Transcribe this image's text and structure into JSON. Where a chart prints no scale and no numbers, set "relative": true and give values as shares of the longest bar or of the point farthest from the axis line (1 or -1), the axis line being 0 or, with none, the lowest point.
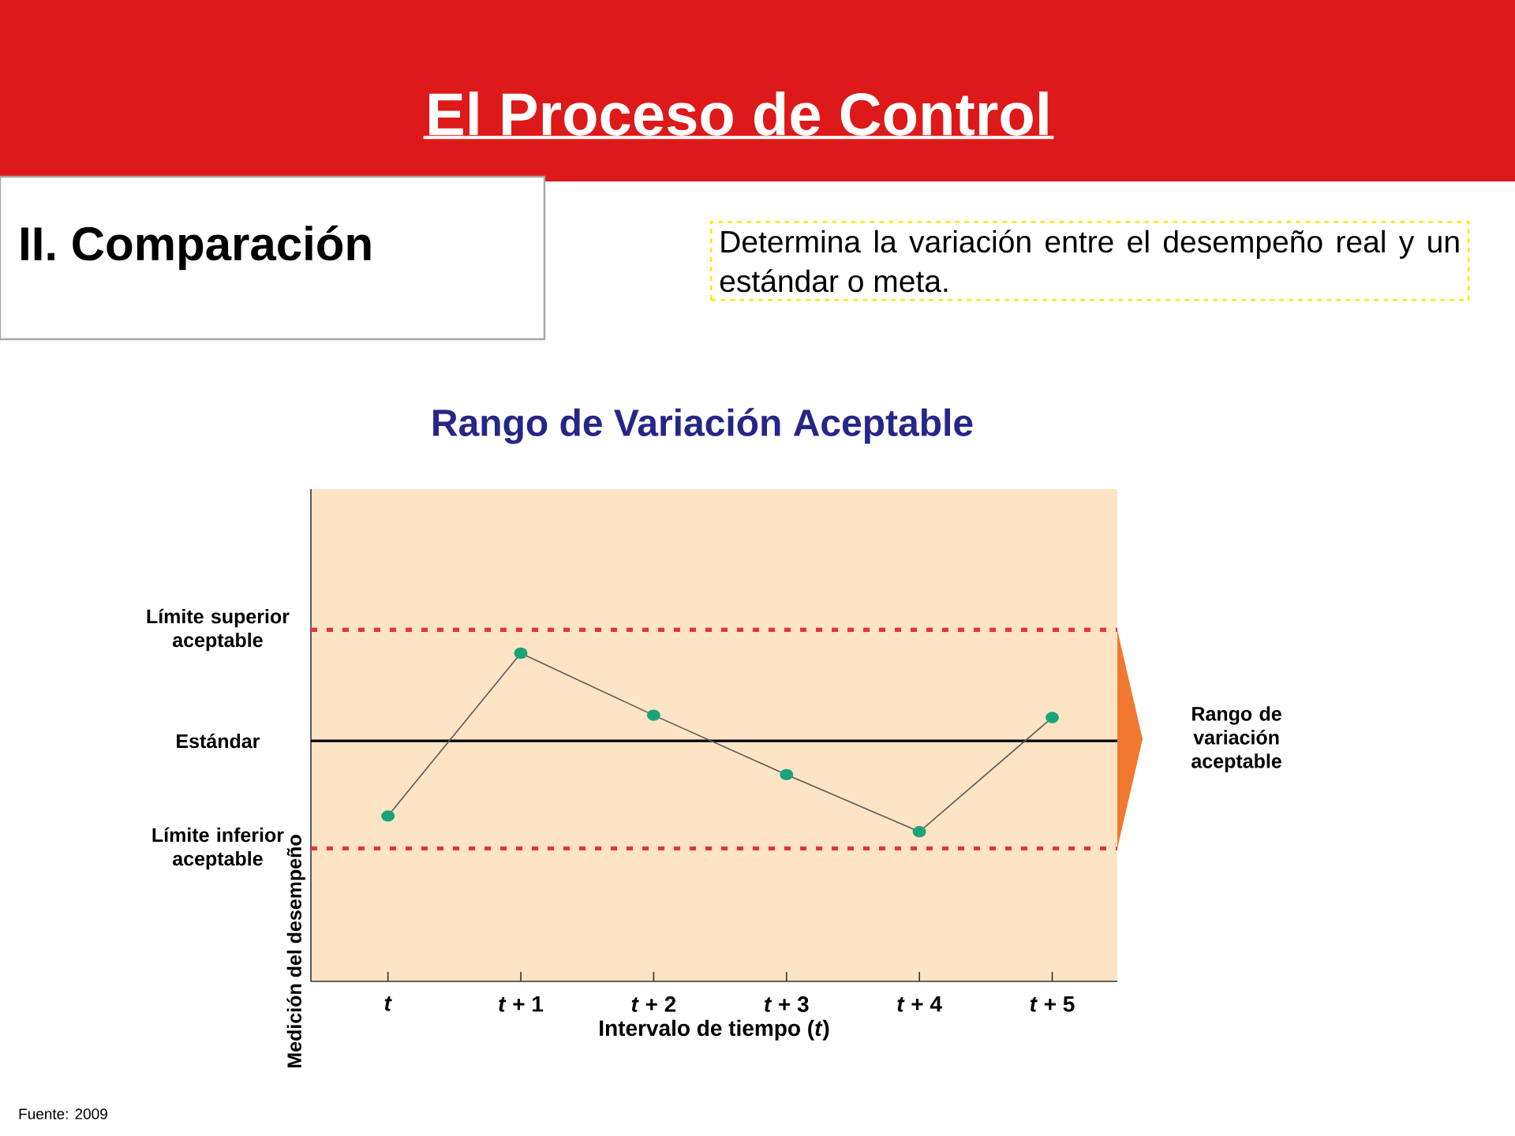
{
  "chart_data": {
    "type": "line",
    "title": "Rango de Variación Aceptable",
    "xlabel": "Intervalo de tiempo (*t*)",
    "ylabel": "Medición del desempeño",
    "categories": [
      "*t*",
      "*t* + 1",
      "*t* + 2",
      "*t* + 3",
      "*t* + 4",
      "*t* + 5"
    ],
    "relative": true,
    "series": [
      {
        "color": "#1aa37a",
        "values": [
          0.504,
          1,
          0.811,
          0.63,
          0.456,
          0.804
        ]
      }
    ],
    "marker": "circle",
    "line_style": "solid",
    "grid": false,
    "ref_lines": [
      {
        "axis": "y",
        "value": 1.071,
        "label": "Límite superior aceptable",
        "color": "#e8313a",
        "line_style": "dotted"
      },
      {
        "axis": "y",
        "value": 0.733,
        "label": "Estándar",
        "color": "#000000",
        "line_style": "solid"
      },
      {
        "axis": "y",
        "value": 0.405,
        "label": "Límite inferior aceptable",
        "color": "#e8313a",
        "line_style": "dotted"
      }
    ],
    "annotations": [
      "El Proceso de Control",
      "II. Comparación",
      "Determina la variación entre el desempeño real y un estándar o  meta.",
      "Fuente: 2009",
      "Rango de variación aceptable"
    ]
  }
}
